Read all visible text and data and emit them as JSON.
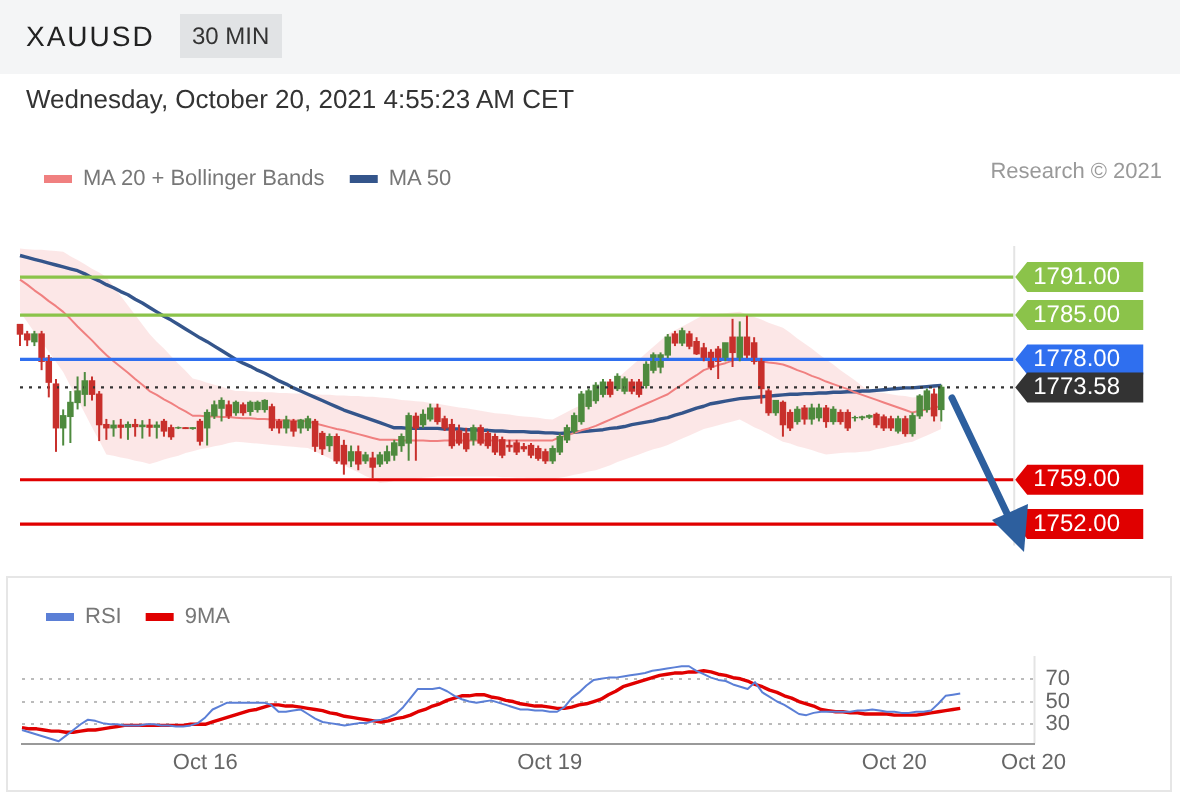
{
  "chart_data": [
    {
      "type": "candlestick",
      "title": "XAUUSD",
      "subtitle": "Wednesday, October 20, 2021 4:55:23 AM CET",
      "annotations": [
        "30 MIN",
        "Research © 2021"
      ],
      "categories": [
        null,
        null,
        null,
        null,
        null,
        null,
        null,
        null,
        null,
        null,
        null,
        null,
        null,
        null,
        null,
        null,
        null,
        null,
        null,
        null,
        null,
        null,
        null,
        null,
        null,
        null,
        null,
        null,
        null,
        null,
        null,
        null,
        null,
        null,
        null,
        null,
        null,
        null,
        null,
        null,
        null,
        null,
        null,
        null,
        null,
        null,
        null,
        null,
        null,
        null,
        null,
        null,
        null,
        null,
        null,
        null,
        null,
        null,
        null,
        null,
        null,
        null,
        null,
        null,
        null,
        null,
        null,
        null,
        null,
        null,
        null,
        null,
        null,
        null,
        null,
        null,
        null,
        null,
        null,
        null,
        null,
        null,
        null,
        null,
        null,
        null,
        null,
        null,
        null,
        null,
        null,
        null,
        null,
        null,
        null,
        null,
        null,
        null,
        null,
        null,
        null,
        null,
        null,
        null,
        null,
        null,
        null,
        null,
        null,
        null,
        null,
        null,
        null,
        null,
        null,
        null,
        null,
        null,
        null,
        null,
        null,
        null,
        null,
        null,
        null,
        null,
        null,
        null,
        null,
        null,
        null,
        null,
        null,
        null,
        null,
        null,
        null,
        null,
        null
      ],
      "ohlc": [
        [
          1783.5,
          1783.6,
          1780.1,
          1782.0
        ],
        [
          1782.0,
          1782.5,
          1780.1,
          1781.1
        ],
        [
          1780.8,
          1782.5,
          1780.1,
          1782.0
        ],
        [
          1782.0,
          1782.5,
          1776.3,
          1777.7
        ],
        [
          1778.2,
          1778.7,
          1772.0,
          1774.4
        ],
        [
          1774.1,
          1774.9,
          1763.4,
          1767.2
        ],
        [
          1767.2,
          1770.1,
          1764.4,
          1769.1
        ],
        [
          1769.0,
          1773.0,
          1764.8,
          1771.2
        ],
        [
          1771.2,
          1775.3,
          1770.1,
          1773.0
        ],
        [
          1772.5,
          1776.0,
          1770.6,
          1774.6
        ],
        [
          1774.6,
          1775.3,
          1771.5,
          1772.5
        ],
        [
          1772.5,
          1773.0,
          1765.1,
          1767.7
        ],
        [
          1767.7,
          1768.6,
          1765.3,
          1767.2
        ],
        [
          1767.2,
          1768.4,
          1765.8,
          1767.6
        ],
        [
          1767.6,
          1768.6,
          1765.5,
          1767.3
        ],
        [
          1767.3,
          1768.2,
          1765.3,
          1767.7
        ],
        [
          1767.7,
          1768.6,
          1765.8,
          1767.4
        ],
        [
          1767.4,
          1768.4,
          1765.5,
          1767.6
        ],
        [
          1767.6,
          1768.6,
          1765.8,
          1767.3
        ],
        [
          1767.3,
          1768.2,
          1765.5,
          1767.6
        ],
        [
          1768.2,
          1768.6,
          1765.8,
          1766.7
        ],
        [
          1767.2,
          1767.7,
          1765.3,
          1765.8
        ],
        [
          1767.2,
          1767.4,
          1767.0,
          1767.2
        ],
        [
          1767.2,
          1767.3,
          1767.0,
          1767.1
        ],
        [
          1767.1,
          1767.3,
          1766.9,
          1767.2
        ],
        [
          1768.2,
          1768.6,
          1764.4,
          1765.1
        ],
        [
          1767.2,
          1770.1,
          1764.4,
          1769.6
        ],
        [
          1769.1,
          1771.5,
          1768.6,
          1770.8
        ],
        [
          1770.3,
          1772.0,
          1768.2,
          1771.5
        ],
        [
          1770.8,
          1771.5,
          1768.6,
          1769.1
        ],
        [
          1769.6,
          1771.5,
          1769.1,
          1771.2
        ],
        [
          1770.8,
          1771.2,
          1769.1,
          1769.6
        ],
        [
          1769.8,
          1771.5,
          1769.1,
          1771.2
        ],
        [
          1770.1,
          1771.5,
          1769.6,
          1771.2
        ],
        [
          1770.1,
          1771.7,
          1769.6,
          1771.5
        ],
        [
          1770.5,
          1771.0,
          1766.7,
          1767.2
        ],
        [
          1768.2,
          1768.6,
          1766.3,
          1767.2
        ],
        [
          1767.2,
          1769.1,
          1766.3,
          1768.4
        ],
        [
          1768.2,
          1768.6,
          1765.8,
          1766.7
        ],
        [
          1767.2,
          1768.6,
          1766.3,
          1768.4
        ],
        [
          1767.2,
          1769.1,
          1766.7,
          1768.6
        ],
        [
          1768.2,
          1768.6,
          1763.4,
          1764.3
        ],
        [
          1766.3,
          1766.7,
          1762.9,
          1763.9
        ],
        [
          1764.4,
          1766.3,
          1763.4,
          1765.8
        ],
        [
          1765.8,
          1766.3,
          1761.5,
          1762.0
        ],
        [
          1764.4,
          1765.3,
          1759.8,
          1761.5
        ],
        [
          1762.0,
          1764.4,
          1761.0,
          1763.4
        ],
        [
          1763.4,
          1764.4,
          1760.5,
          1761.5
        ],
        [
          1762.0,
          1763.4,
          1761.5,
          1762.9
        ],
        [
          1762.4,
          1763.4,
          1759.2,
          1761.0
        ],
        [
          1761.5,
          1763.4,
          1761.0,
          1762.9
        ],
        [
          1762.0,
          1764.4,
          1761.5,
          1763.4
        ],
        [
          1762.9,
          1765.3,
          1762.0,
          1764.8
        ],
        [
          1764.4,
          1766.3,
          1763.4,
          1765.8
        ],
        [
          1764.8,
          1769.6,
          1762.0,
          1769.1
        ],
        [
          1769.0,
          1769.6,
          1762.0,
          1767.2
        ],
        [
          1767.7,
          1770.1,
          1767.2,
          1769.3
        ],
        [
          1768.6,
          1771.0,
          1768.2,
          1770.3
        ],
        [
          1770.3,
          1771.0,
          1767.7,
          1768.2
        ],
        [
          1768.6,
          1769.1,
          1766.7,
          1767.2
        ],
        [
          1767.7,
          1768.6,
          1763.9,
          1764.4
        ],
        [
          1766.7,
          1767.7,
          1764.4,
          1764.8
        ],
        [
          1766.3,
          1767.2,
          1763.4,
          1763.9
        ],
        [
          1765.3,
          1767.7,
          1764.4,
          1767.2
        ],
        [
          1767.2,
          1767.7,
          1764.4,
          1764.8
        ],
        [
          1766.3,
          1766.7,
          1763.9,
          1764.4
        ],
        [
          1765.8,
          1766.3,
          1762.9,
          1763.4
        ],
        [
          1765.3,
          1765.8,
          1762.4,
          1762.9
        ],
        [
          1764.4,
          1765.3,
          1763.4,
          1764.2
        ],
        [
          1764.8,
          1765.3,
          1762.9,
          1763.4
        ],
        [
          1764.2,
          1764.8,
          1763.4,
          1763.9
        ],
        [
          1764.4,
          1764.8,
          1762.4,
          1762.9
        ],
        [
          1763.9,
          1764.4,
          1762.0,
          1762.4
        ],
        [
          1763.4,
          1763.9,
          1761.5,
          1762.0
        ],
        [
          1762.0,
          1764.4,
          1761.5,
          1763.9
        ],
        [
          1763.4,
          1766.3,
          1762.9,
          1765.8
        ],
        [
          1765.3,
          1767.7,
          1764.8,
          1767.2
        ],
        [
          1766.7,
          1769.6,
          1766.3,
          1769.1
        ],
        [
          1768.2,
          1773.0,
          1767.7,
          1772.5
        ],
        [
          1770.6,
          1773.4,
          1770.1,
          1773.0
        ],
        [
          1771.5,
          1774.4,
          1771.0,
          1773.9
        ],
        [
          1772.5,
          1774.9,
          1772.0,
          1774.4
        ],
        [
          1774.4,
          1774.9,
          1772.0,
          1772.5
        ],
        [
          1773.4,
          1775.8,
          1773.0,
          1775.3
        ],
        [
          1773.0,
          1775.3,
          1772.5,
          1774.9
        ],
        [
          1774.4,
          1774.9,
          1772.5,
          1773.0
        ],
        [
          1774.4,
          1774.9,
          1772.0,
          1772.5
        ],
        [
          1773.9,
          1777.7,
          1773.4,
          1777.2
        ],
        [
          1776.3,
          1779.1,
          1775.8,
          1778.7
        ],
        [
          1776.8,
          1779.1,
          1775.8,
          1778.7
        ],
        [
          1778.7,
          1782.0,
          1778.2,
          1781.5
        ],
        [
          1782.0,
          1782.5,
          1780.1,
          1780.6
        ],
        [
          1780.6,
          1783.0,
          1780.1,
          1782.5
        ],
        [
          1782.0,
          1782.5,
          1779.6,
          1780.1
        ],
        [
          1780.8,
          1781.5,
          1778.7,
          1778.9
        ],
        [
          1779.8,
          1780.6,
          1777.7,
          1777.9
        ],
        [
          1779.1,
          1779.6,
          1776.3,
          1776.8
        ],
        [
          1779.6,
          1780.1,
          1774.9,
          1777.7
        ],
        [
          1778.2,
          1780.6,
          1777.7,
          1780.6
        ],
        [
          1781.5,
          1784.4,
          1776.8,
          1779.1
        ],
        [
          1778.2,
          1784.0,
          1777.7,
          1781.5
        ],
        [
          1781.5,
          1784.9,
          1778.2,
          1778.7
        ],
        [
          1780.6,
          1781.5,
          1777.2,
          1777.7
        ],
        [
          1777.7,
          1778.2,
          1771.0,
          1773.4
        ],
        [
          1773.0,
          1773.4,
          1769.1,
          1769.6
        ],
        [
          1769.6,
          1771.5,
          1769.1,
          1771.5
        ],
        [
          1771.2,
          1771.5,
          1765.8,
          1767.7
        ],
        [
          1769.6,
          1770.1,
          1766.7,
          1767.2
        ],
        [
          1768.2,
          1770.6,
          1767.7,
          1770.1
        ],
        [
          1770.3,
          1770.8,
          1767.7,
          1768.6
        ],
        [
          1768.6,
          1771.0,
          1767.7,
          1770.3
        ],
        [
          1768.8,
          1771.0,
          1768.2,
          1770.3
        ],
        [
          1770.3,
          1770.8,
          1767.2,
          1768.2
        ],
        [
          1768.2,
          1770.6,
          1767.7,
          1770.1
        ],
        [
          1769.6,
          1770.1,
          1767.7,
          1768.2
        ],
        [
          1769.6,
          1770.1,
          1766.7,
          1767.2
        ],
        [
          1768.8,
          1769.1,
          1768.2,
          1768.8
        ],
        [
          1768.8,
          1769.1,
          1768.4,
          1768.9
        ],
        [
          1768.9,
          1769.3,
          1768.6,
          1769.1
        ],
        [
          1769.3,
          1769.6,
          1767.2,
          1767.7
        ],
        [
          1768.9,
          1769.3,
          1766.7,
          1767.2
        ],
        [
          1768.6,
          1769.1,
          1766.7,
          1767.2
        ],
        [
          1766.7,
          1769.1,
          1766.3,
          1768.6
        ],
        [
          1768.6,
          1769.1,
          1765.8,
          1766.3
        ],
        [
          1766.3,
          1769.6,
          1765.8,
          1769.1
        ],
        [
          1769.1,
          1772.5,
          1768.6,
          1772.2
        ],
        [
          1770.1,
          1773.4,
          1769.6,
          1773.0
        ],
        [
          1772.5,
          1773.4,
          1768.2,
          1769.1
        ],
        [
          1770.1,
          1774.0,
          1768.2,
          1773.58
        ],
        null,
        null,
        null,
        null,
        null,
        null,
        null,
        null,
        null,
        null
      ],
      "series": [
        {
          "type": "line",
          "name": "MA 20 + Bollinger Bands",
          "color": "#f08080",
          "values": [
            1790.6,
            1789.8,
            1788.9,
            1788.1,
            1787.2,
            1786.4,
            1785.5,
            1784.4,
            1783.2,
            1782.1,
            1781.0,
            1779.8,
            1778.7,
            1777.7,
            1776.8,
            1775.9,
            1774.9,
            1774.0,
            1773.0,
            1772.4,
            1771.7,
            1771.1,
            1770.4,
            1769.8,
            1769.1,
            1769.1,
            1769.0,
            1769.0,
            1768.9,
            1768.9,
            1768.8,
            1768.7,
            1768.7,
            1768.6,
            1768.6,
            1768.5,
            1768.4,
            1768.4,
            1768.3,
            1768.3,
            1768.2,
            1767.9,
            1767.6,
            1767.3,
            1767.0,
            1766.8,
            1766.5,
            1766.2,
            1765.9,
            1765.6,
            1765.3,
            1765.3,
            1765.3,
            1765.2,
            1765.2,
            1765.2,
            1765.2,
            1765.1,
            1765.1,
            1765.2,
            1765.2,
            1765.2,
            1765.2,
            1765.2,
            1765.2,
            1765.2,
            1765.2,
            1765.2,
            1765.2,
            1765.2,
            1765.2,
            1765.2,
            1765.2,
            1765.2,
            1765.2,
            1765.7,
            1766.0,
            1766.4,
            1766.8,
            1767.1,
            1767.5,
            1768.0,
            1768.5,
            1769.0,
            1769.5,
            1770.0,
            1770.5,
            1771.0,
            1771.5,
            1772.0,
            1772.5,
            1773.3,
            1774.0,
            1774.8,
            1775.5,
            1776.3,
            1776.7,
            1777.1,
            1777.4,
            1777.8,
            1778.2,
            1778.0,
            1777.9,
            1777.7,
            1777.5,
            1777.4,
            1777.2,
            1776.8,
            1776.3,
            1775.9,
            1775.4,
            1775.0,
            1774.5,
            1774.1,
            1773.7,
            1773.3,
            1772.8,
            1772.4,
            1772.0,
            1771.6,
            1771.2,
            1770.8,
            1770.4,
            1770.0,
            1769.6,
            1769.9,
            1770.1,
            1770.4,
            1770.6,
            null,
            null,
            null,
            null,
            null,
            null,
            null,
            null,
            null,
            null
          ],
          "upper": [
            1795.5,
            1795.4,
            1795.3,
            1795.3,
            1795.2,
            1795.1,
            1795.0,
            1794.3,
            1793.7,
            1793.0,
            1792.3,
            1791.7,
            1791.0,
            1789.5,
            1788.0,
            1786.5,
            1785.0,
            1783.5,
            1782.0,
            1780.8,
            1779.7,
            1778.5,
            1777.3,
            1776.2,
            1775.0,
            1774.7,
            1774.3,
            1774.0,
            1773.7,
            1773.3,
            1773.0,
            1773.0,
            1772.9,
            1772.9,
            1772.8,
            1772.8,
            1772.7,
            1772.7,
            1772.6,
            1772.6,
            1772.5,
            1772.5,
            1772.4,
            1772.4,
            1772.3,
            1772.3,
            1772.2,
            1772.2,
            1772.1,
            1772.1,
            1772.0,
            1771.9,
            1771.8,
            1771.6,
            1771.5,
            1771.4,
            1771.3,
            1771.1,
            1771.0,
            1770.8,
            1770.6,
            1770.4,
            1770.3,
            1770.1,
            1769.9,
            1769.7,
            1769.5,
            1769.4,
            1769.3,
            1769.1,
            1769.0,
            1768.9,
            1768.8,
            1768.6,
            1768.5,
            1769.1,
            1769.7,
            1770.3,
            1770.8,
            1771.4,
            1772.0,
            1773.0,
            1774.0,
            1775.0,
            1776.0,
            1777.0,
            1778.0,
            1779.0,
            1780.0,
            1781.0,
            1782.0,
            1782.6,
            1783.2,
            1783.8,
            1784.4,
            1785.0,
            1785.1,
            1785.2,
            1785.3,
            1785.4,
            1785.5,
            1785.1,
            1784.7,
            1784.3,
            1783.8,
            1783.4,
            1783.0,
            1782.2,
            1781.3,
            1780.5,
            1779.7,
            1778.8,
            1778.0,
            1777.2,
            1776.3,
            1775.5,
            1774.7,
            1773.8,
            1773.0,
            1772.8,
            1772.7,
            1772.5,
            1772.3,
            1772.2,
            1772.0,
            1772.1,
            1772.3,
            1772.4,
            1772.5,
            null,
            null,
            null,
            null,
            null,
            null,
            null,
            null,
            null,
            null
          ],
          "lower": [
            1785.5,
            1783.9,
            1782.3,
            1780.8,
            1779.2,
            1777.6,
            1776.0,
            1773.8,
            1771.7,
            1769.5,
            1767.3,
            1765.2,
            1763.0,
            1762.8,
            1762.5,
            1762.3,
            1762.0,
            1761.8,
            1761.5,
            1761.8,
            1762.2,
            1762.5,
            1762.8,
            1763.2,
            1763.5,
            1763.8,
            1764.0,
            1764.3,
            1764.5,
            1764.8,
            1765.0,
            1764.9,
            1764.8,
            1764.7,
            1764.6,
            1764.5,
            1764.4,
            1764.3,
            1764.2,
            1764.1,
            1764.0,
            1763.5,
            1762.9,
            1762.4,
            1761.8,
            1761.3,
            1760.7,
            1760.2,
            1759.6,
            1759.1,
            1758.5,
            1758.6,
            1758.8,
            1758.9,
            1759.0,
            1759.1,
            1759.3,
            1759.4,
            1759.5,
            1759.5,
            1759.5,
            1759.5,
            1759.5,
            1759.5,
            1759.5,
            1759.5,
            1759.5,
            1759.4,
            1759.4,
            1759.3,
            1759.3,
            1759.2,
            1759.1,
            1759.1,
            1759.0,
            1759.3,
            1759.5,
            1759.8,
            1760.0,
            1760.3,
            1760.5,
            1760.9,
            1761.3,
            1761.8,
            1762.2,
            1762.6,
            1763.0,
            1763.4,
            1763.8,
            1764.1,
            1764.5,
            1765.0,
            1765.5,
            1766.0,
            1766.5,
            1767.0,
            1767.3,
            1767.6,
            1767.9,
            1768.2,
            1768.5,
            1767.9,
            1767.3,
            1766.8,
            1766.2,
            1765.6,
            1765.0,
            1764.7,
            1764.3,
            1764.0,
            1763.7,
            1763.3,
            1763.0,
            1763.1,
            1763.2,
            1763.3,
            1763.3,
            1763.4,
            1763.5,
            1763.8,
            1764.0,
            1764.3,
            1764.5,
            1764.8,
            1765.0,
            1765.5,
            1766.0,
            1766.5,
            1767.0,
            null,
            null,
            null,
            null,
            null,
            null,
            null,
            null,
            null,
            null
          ]
        },
        {
          "type": "line",
          "name": "MA 50",
          "color": "#34558b",
          "values": [
            1794.4,
            1794.1,
            1793.8,
            1793.5,
            1793.2,
            1792.9,
            1792.6,
            1792.3,
            1792.0,
            1791.5,
            1790.9,
            1790.4,
            1789.8,
            1789.3,
            1788.7,
            1788.2,
            1787.5,
            1786.9,
            1786.2,
            1785.5,
            1784.8,
            1784.2,
            1783.5,
            1782.8,
            1782.1,
            1781.4,
            1780.8,
            1780.1,
            1779.4,
            1778.7,
            1778.0,
            1777.4,
            1776.9,
            1776.3,
            1775.8,
            1775.2,
            1774.6,
            1774.1,
            1773.5,
            1773.0,
            1772.5,
            1772.0,
            1771.5,
            1771.0,
            1770.5,
            1770.0,
            1769.6,
            1769.2,
            1768.8,
            1768.4,
            1768.0,
            1767.6,
            1767.2,
            1767.2,
            1767.1,
            1767.1,
            1767.1,
            1767.1,
            1767.1,
            1767.0,
            1767.0,
            1767.0,
            1766.9,
            1766.9,
            1766.8,
            1766.8,
            1766.7,
            1766.7,
            1766.6,
            1766.6,
            1766.6,
            1766.5,
            1766.5,
            1766.4,
            1766.4,
            1766.3,
            1766.4,
            1766.5,
            1766.6,
            1766.7,
            1766.8,
            1766.9,
            1767.1,
            1767.2,
            1767.4,
            1767.7,
            1767.9,
            1768.1,
            1768.3,
            1768.6,
            1768.8,
            1769.2,
            1769.5,
            1769.9,
            1770.3,
            1770.6,
            1771.0,
            1771.2,
            1771.4,
            1771.6,
            1771.8,
            1771.9,
            1772.0,
            1772.1,
            1772.2,
            1772.3,
            1772.4,
            1772.5,
            1772.5,
            1772.6,
            1772.6,
            1772.7,
            1772.7,
            1772.8,
            1772.8,
            1772.9,
            1772.9,
            1773.0,
            1773.0,
            1773.1,
            1773.2,
            1773.3,
            1773.4,
            1773.5,
            1773.5,
            1773.6,
            1773.7,
            1773.8,
            1773.9,
            null,
            null,
            null,
            null,
            null,
            null,
            null,
            null,
            null,
            null
          ]
        }
      ],
      "ylim": [
        1748.6,
        1795.9
      ],
      "yticks": [
        {
          "value": 1752,
          "label": "1752.00"
        },
        {
          "value": 1759,
          "label": "1759.00"
        },
        {
          "value": 1773.58,
          "label": "1773.58"
        },
        {
          "value": 1778,
          "label": "1778.00"
        },
        {
          "value": 1785,
          "label": "1785.00"
        },
        {
          "value": 1791,
          "label": "1791.00"
        }
      ],
      "tick_labels": "y",
      "legend": "top left",
      "ref_lines": [
        {
          "axis": "y",
          "value": 1791,
          "color": "#8bc34a",
          "line_style": "solid"
        },
        {
          "axis": "y",
          "value": 1785,
          "color": "#8bc34a",
          "line_style": "solid"
        },
        {
          "axis": "y",
          "value": 1778,
          "color": "#2f6fef",
          "line_style": "solid"
        },
        {
          "axis": "y",
          "value": 1773.58,
          "color": "#333333",
          "line_style": "dotted"
        },
        {
          "axis": "y",
          "value": 1759,
          "color": "#e00000",
          "line_style": "solid"
        },
        {
          "axis": "y",
          "value": 1752,
          "color": "#e00000",
          "line_style": "solid"
        }
      ]
    },
    {
      "type": "line",
      "categories": [
        null,
        null,
        null,
        null,
        null,
        null,
        null,
        null,
        null,
        null,
        null,
        null,
        null,
        null,
        null,
        null,
        null,
        null,
        null,
        null,
        null,
        null,
        null,
        null,
        null,
        "Oct 16",
        null,
        null,
        null,
        null,
        null,
        null,
        null,
        null,
        null,
        null,
        null,
        null,
        null,
        null,
        null,
        null,
        null,
        null,
        null,
        null,
        null,
        null,
        null,
        null,
        null,
        null,
        null,
        null,
        null,
        null,
        null,
        null,
        null,
        null,
        null,
        null,
        null,
        null,
        null,
        null,
        null,
        null,
        null,
        null,
        null,
        null,
        "Oct 19",
        null,
        null,
        null,
        null,
        null,
        null,
        null,
        null,
        null,
        null,
        null,
        null,
        null,
        null,
        null,
        null,
        null,
        null,
        null,
        null,
        null,
        null,
        null,
        null,
        null,
        null,
        null,
        null,
        null,
        null,
        null,
        null,
        null,
        null,
        null,
        null,
        null,
        null,
        null,
        null,
        null,
        null,
        null,
        null,
        null,
        null,
        "Oct 20",
        null,
        null,
        null,
        null,
        null,
        null,
        null,
        null,
        null,
        null,
        null,
        null,
        null,
        null,
        null,
        null,
        null,
        null,
        "Oct 20"
      ],
      "series": [
        {
          "name": "RSI",
          "color": "#5b7fd6",
          "values": [
            25,
            23,
            21,
            19,
            17,
            15,
            20,
            25,
            30,
            34,
            33,
            31,
            30,
            30,
            29,
            29,
            29,
            30,
            30,
            29,
            29,
            28,
            28,
            29,
            31,
            36,
            43,
            46,
            49,
            49,
            49,
            49,
            49,
            49,
            47,
            41,
            41,
            42,
            43,
            39,
            35,
            32,
            31,
            30,
            29,
            30,
            31,
            31,
            33,
            34,
            36,
            39,
            45,
            53,
            61,
            61,
            61,
            62,
            59,
            55,
            52,
            50,
            49,
            50,
            51,
            49,
            47,
            45,
            43,
            43,
            42,
            42,
            41,
            41,
            45,
            53,
            58,
            64,
            69,
            70,
            71,
            71,
            72,
            73,
            74,
            75,
            77,
            78,
            79,
            80,
            81,
            81,
            77,
            74,
            71,
            69,
            68,
            65,
            63,
            61,
            67,
            58,
            54,
            50,
            47,
            43,
            39,
            38,
            40,
            41,
            41,
            41,
            41,
            41,
            42,
            42,
            43,
            42,
            41,
            41,
            40,
            40,
            41,
            41,
            42,
            48,
            55,
            56,
            57,
            null,
            null,
            null,
            null,
            null,
            null,
            null,
            null,
            null,
            null
          ]
        },
        {
          "name": "9MA",
          "color": "#e00000",
          "values": [
            27,
            26,
            26,
            25,
            24,
            24,
            23,
            23,
            24,
            25,
            25,
            26,
            27,
            28,
            29,
            29,
            29,
            29,
            29,
            29,
            29,
            29,
            29,
            30,
            30,
            30,
            32,
            34,
            36,
            38,
            40,
            42,
            43,
            45,
            47,
            47,
            46,
            46,
            45,
            44,
            43,
            42,
            40,
            39,
            37,
            36,
            35,
            34,
            33,
            32,
            33,
            35,
            36,
            38,
            41,
            43,
            46,
            48,
            51,
            53,
            55,
            55,
            56,
            56,
            54,
            53,
            51,
            50,
            48,
            47,
            46,
            46,
            45,
            44,
            44,
            45,
            47,
            48,
            50,
            52,
            56,
            59,
            63,
            65,
            67,
            69,
            71,
            73,
            74,
            75,
            75,
            76,
            76,
            77,
            76,
            74,
            73,
            71,
            70,
            68,
            65,
            63,
            60,
            58,
            55,
            53,
            50,
            48,
            46,
            43,
            42,
            41,
            41,
            40,
            40,
            39,
            39,
            39,
            39,
            38,
            38,
            38,
            38,
            39,
            40,
            41,
            42,
            43,
            44,
            null,
            null,
            null,
            null,
            null,
            null,
            null,
            null,
            null,
            null
          ]
        }
      ],
      "ylim": [
        13,
        90
      ],
      "yticks": [
        30,
        50,
        70
      ],
      "grid": "y",
      "legend": "top left"
    }
  ]
}
